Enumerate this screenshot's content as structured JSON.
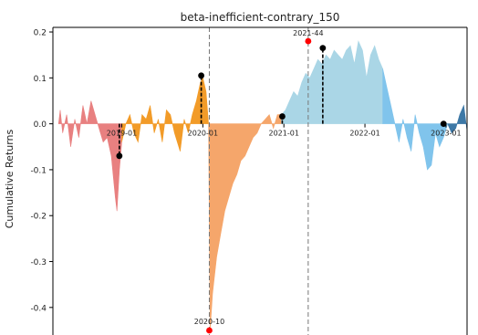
{
  "chart_data": {
    "type": "area",
    "title": "beta-inefficient-contrary_150",
    "xlabel": "",
    "ylabel": "Cumulative Returns",
    "ylim": [
      -0.46,
      0.21
    ],
    "xlim": [
      2018.93,
      2024.04
    ],
    "yticks": [
      0.2,
      0.1,
      0.0,
      -0.1,
      -0.2,
      -0.3,
      -0.4
    ],
    "ytick_labels": [
      "0.2",
      "0.1",
      "0.0",
      "-0.1",
      "-0.2",
      "-0.3",
      "-0.4"
    ],
    "xtick_labels": [
      {
        "x": 2019.78,
        "label": "2019-01"
      },
      {
        "x": 2020.78,
        "label": "2020-01"
      },
      {
        "x": 2021.78,
        "label": "2021-01"
      },
      {
        "x": 2022.78,
        "label": "2022-01"
      },
      {
        "x": 2023.78,
        "label": "2023-01"
      }
    ],
    "vlines": [
      2020.86,
      2022.08
    ],
    "segments": [
      {
        "color": "#e88080",
        "points": [
          [
            2019.0,
            0.0
          ],
          [
            2019.02,
            0.03
          ],
          [
            2019.05,
            -0.02
          ],
          [
            2019.1,
            0.02
          ],
          [
            2019.15,
            -0.05
          ],
          [
            2019.2,
            0.01
          ],
          [
            2019.25,
            -0.03
          ],
          [
            2019.3,
            0.04
          ],
          [
            2019.35,
            0.0
          ],
          [
            2019.4,
            0.05
          ],
          [
            2019.45,
            0.02
          ],
          [
            2019.5,
            -0.01
          ],
          [
            2019.55,
            -0.04
          ],
          [
            2019.6,
            -0.03
          ],
          [
            2019.65,
            -0.07
          ],
          [
            2019.7,
            -0.16
          ],
          [
            2019.72,
            -0.19
          ],
          [
            2019.75,
            -0.1
          ],
          [
            2019.78,
            -0.04
          ]
        ]
      },
      {
        "color": "#f29b28",
        "points": [
          [
            2019.78,
            -0.04
          ],
          [
            2019.83,
            0.0
          ],
          [
            2019.88,
            0.02
          ],
          [
            2019.93,
            -0.02
          ],
          [
            2019.98,
            -0.04
          ],
          [
            2020.03,
            0.02
          ],
          [
            2020.08,
            0.01
          ],
          [
            2020.13,
            0.04
          ],
          [
            2020.18,
            -0.02
          ],
          [
            2020.23,
            0.01
          ],
          [
            2020.28,
            -0.04
          ],
          [
            2020.33,
            0.03
          ],
          [
            2020.38,
            0.02
          ],
          [
            2020.43,
            -0.02
          ],
          [
            2020.5,
            -0.06
          ],
          [
            2020.55,
            0.01
          ],
          [
            2020.6,
            -0.02
          ],
          [
            2020.65,
            0.02
          ],
          [
            2020.7,
            0.05
          ],
          [
            2020.75,
            0.09
          ],
          [
            2020.78,
            0.1
          ],
          [
            2020.82,
            0.07
          ],
          [
            2020.85,
            0.0
          ]
        ]
      },
      {
        "color": "#f5a66b",
        "points": [
          [
            2020.85,
            0.0
          ],
          [
            2020.87,
            -0.45
          ],
          [
            2020.9,
            -0.37
          ],
          [
            2020.95,
            -0.29
          ],
          [
            2021.0,
            -0.24
          ],
          [
            2021.05,
            -0.19
          ],
          [
            2021.1,
            -0.16
          ],
          [
            2021.15,
            -0.13
          ],
          [
            2021.2,
            -0.11
          ],
          [
            2021.25,
            -0.08
          ],
          [
            2021.3,
            -0.07
          ],
          [
            2021.35,
            -0.05
          ],
          [
            2021.4,
            -0.03
          ],
          [
            2021.45,
            -0.02
          ],
          [
            2021.5,
            0.0
          ],
          [
            2021.55,
            0.01
          ],
          [
            2021.6,
            0.02
          ],
          [
            2021.65,
            -0.01
          ],
          [
            2021.7,
            0.02
          ],
          [
            2021.75,
            0.02
          ]
        ]
      },
      {
        "color": "#aad6e6",
        "points": [
          [
            2021.75,
            0.02
          ],
          [
            2021.8,
            0.03
          ],
          [
            2021.85,
            0.05
          ],
          [
            2021.9,
            0.07
          ],
          [
            2021.95,
            0.06
          ],
          [
            2022.0,
            0.09
          ],
          [
            2022.05,
            0.11
          ],
          [
            2022.1,
            0.1
          ],
          [
            2022.15,
            0.12
          ],
          [
            2022.2,
            0.14
          ],
          [
            2022.25,
            0.13
          ],
          [
            2022.3,
            0.15
          ],
          [
            2022.35,
            0.14
          ],
          [
            2022.4,
            0.16
          ],
          [
            2022.45,
            0.15
          ],
          [
            2022.5,
            0.14
          ],
          [
            2022.55,
            0.16
          ],
          [
            2022.6,
            0.17
          ],
          [
            2022.65,
            0.13
          ],
          [
            2022.7,
            0.18
          ],
          [
            2022.75,
            0.16
          ],
          [
            2022.8,
            0.1
          ],
          [
            2022.85,
            0.15
          ],
          [
            2022.9,
            0.17
          ],
          [
            2022.95,
            0.14
          ],
          [
            2023.0,
            0.12
          ]
        ]
      },
      {
        "color": "#80c4ec",
        "points": [
          [
            2023.0,
            0.12
          ],
          [
            2023.05,
            0.08
          ],
          [
            2023.1,
            0.04
          ],
          [
            2023.15,
            0.0
          ],
          [
            2023.2,
            -0.04
          ],
          [
            2023.25,
            0.01
          ],
          [
            2023.3,
            -0.03
          ],
          [
            2023.35,
            -0.06
          ],
          [
            2023.4,
            0.02
          ],
          [
            2023.45,
            -0.02
          ],
          [
            2023.5,
            -0.05
          ],
          [
            2023.55,
            -0.1
          ],
          [
            2023.6,
            -0.09
          ],
          [
            2023.65,
            -0.02
          ],
          [
            2023.7,
            -0.05
          ],
          [
            2023.75,
            -0.03
          ],
          [
            2023.8,
            0.0
          ]
        ]
      },
      {
        "color": "#3d78a6",
        "points": [
          [
            2023.8,
            0.0
          ],
          [
            2023.85,
            -0.02
          ],
          [
            2023.9,
            -0.01
          ],
          [
            2023.95,
            0.02
          ],
          [
            2024.0,
            0.04
          ],
          [
            2024.05,
            -0.03
          ],
          [
            2024.1,
            -0.02
          ],
          [
            2024.15,
            0.01
          ],
          [
            2024.2,
            0.03
          ],
          [
            2024.25,
            -0.04
          ],
          [
            2024.3,
            -0.02
          ],
          [
            2024.35,
            0.05
          ],
          [
            2024.4,
            0.03
          ],
          [
            2024.45,
            -0.07
          ],
          [
            2024.5,
            -0.03
          ],
          [
            2024.55,
            0.05
          ],
          [
            2024.6,
            0.07
          ]
        ]
      }
    ],
    "markers": [
      {
        "x": 2019.75,
        "y": -0.07,
        "color": "#000000",
        "stem_from": 0.0
      },
      {
        "x": 2020.76,
        "y": 0.105,
        "color": "#000000",
        "stem_from": 0.0
      },
      {
        "x": 2020.86,
        "y": -0.45,
        "color": "#ff0000",
        "label": "2020-10"
      },
      {
        "x": 2021.76,
        "y": 0.016,
        "color": "#000000",
        "stem_from": 0.0
      },
      {
        "x": 2022.08,
        "y": 0.18,
        "color": "#ff0000",
        "label": "2021-44"
      },
      {
        "x": 2022.26,
        "y": 0.165,
        "color": "#000000",
        "stem_from": 0.0
      },
      {
        "x": 2023.75,
        "y": 0.0,
        "color": "#000000"
      }
    ]
  }
}
